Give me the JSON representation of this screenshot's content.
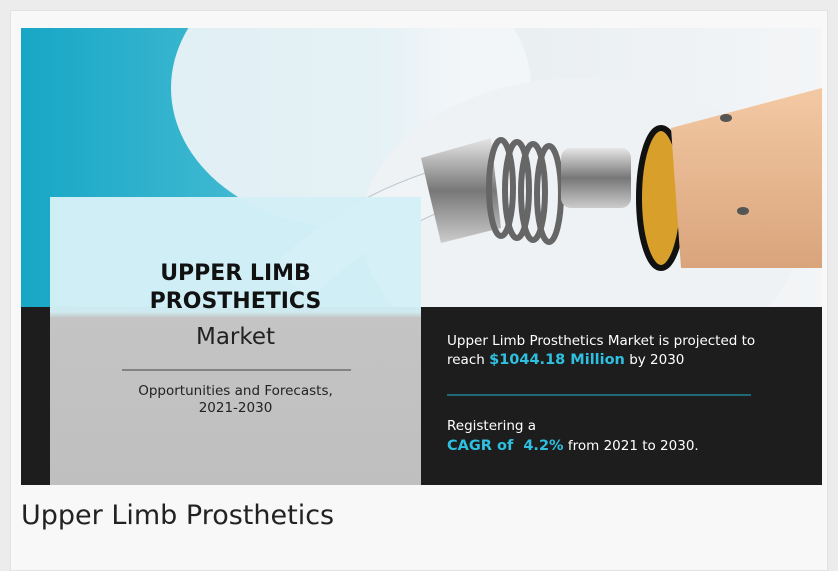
{
  "infographic": {
    "title_line1": "UPPER LIMB",
    "title_line2": "PROSTHETICS",
    "title_line3": "Market",
    "subtitle_line1": "Opportunities and Forecasts,",
    "subtitle_line2": "2021-2030",
    "projection_line1": "Upper Limb Prosthetics Market is projected to",
    "projection_prefix": "reach",
    "projection_value": "$1044.18 Million",
    "projection_suffix": "by 2030",
    "cagr_line1": "Registering a",
    "cagr_value": "CAGR of  4.2%",
    "cagr_suffix": "from 2021 to 2030."
  },
  "caption": "Upper Limb Prosthetics"
}
